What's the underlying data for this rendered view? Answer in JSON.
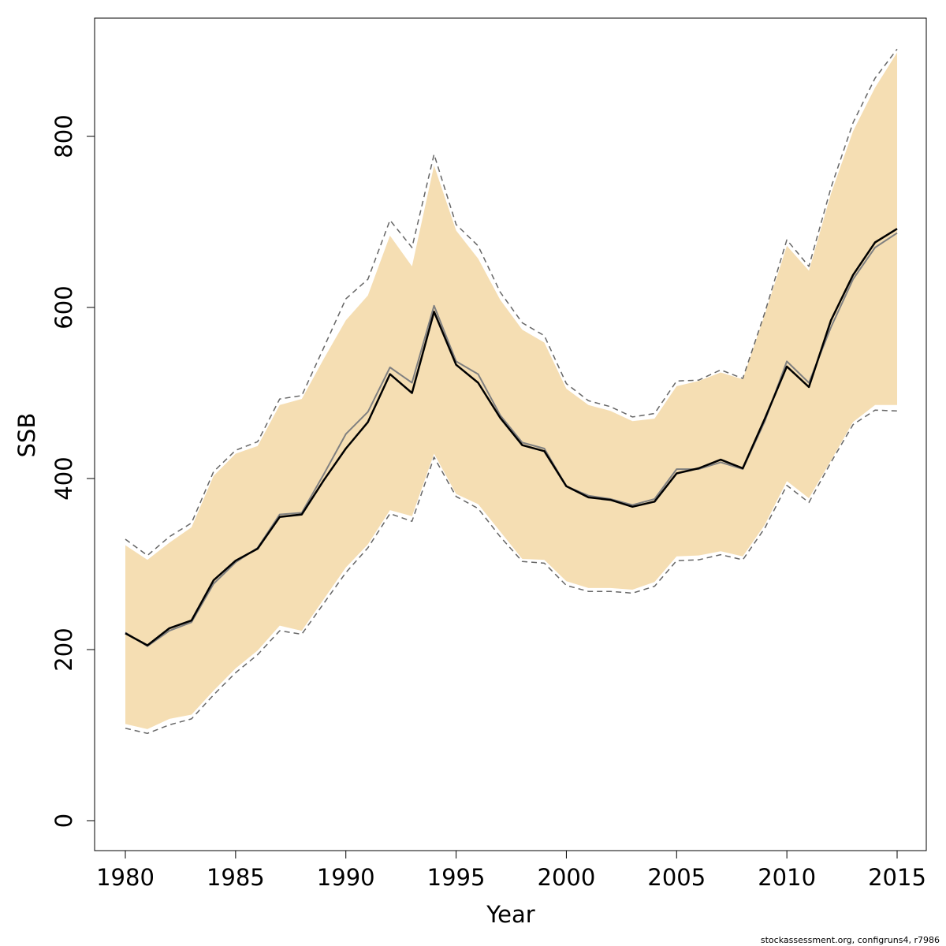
{
  "chart_data": {
    "type": "area",
    "xlabel": "Year",
    "ylabel": "SSB",
    "xlim": [
      1978.6,
      1980.0
    ],
    "ylim": [
      -90,
      960
    ],
    "x_ticks": [
      1980,
      1985,
      1990,
      1995,
      2000,
      2005,
      2010,
      2015
    ],
    "y_ticks": [
      0,
      200,
      400,
      600,
      800
    ],
    "grid": false,
    "colors": {
      "band": "#f5deb3",
      "estimate": "#000000",
      "alternate": "#808080",
      "bounds": "#666666"
    },
    "x": [
      1980,
      1981,
      1982,
      1983,
      1984,
      1985,
      1986,
      1987,
      1988,
      1989,
      1990,
      1991,
      1992,
      1993,
      1994,
      1995,
      1996,
      1997,
      1998,
      1999,
      2000,
      2001,
      2002,
      2003,
      2004,
      2005,
      2006,
      2007,
      2008,
      2009,
      2010,
      2011,
      2012,
      2013,
      2014,
      2015
    ],
    "series": [
      {
        "role": "estimate",
        "values": [
          219,
          205,
          225,
          234,
          281,
          304,
          318,
          355,
          358,
          398,
          435,
          466,
          522,
          500,
          595,
          533,
          512,
          471,
          439,
          432,
          391,
          378,
          375,
          367,
          373,
          406,
          412,
          422,
          412,
          470,
          531,
          507,
          585,
          638,
          676,
          692
        ]
      },
      {
        "role": "alternate",
        "values": [
          220,
          204,
          222,
          232,
          277,
          302,
          319,
          358,
          360,
          405,
          452,
          478,
          530,
          512,
          602,
          537,
          522,
          474,
          442,
          435,
          391,
          380,
          376,
          369,
          376,
          411,
          411,
          419,
          411,
          467,
          537,
          512,
          577,
          633,
          670,
          687
        ]
      },
      {
        "role": "band_upper",
        "values": [
          322,
          305,
          325,
          343,
          403,
          429,
          438,
          486,
          493,
          540,
          585,
          614,
          684,
          648,
          766,
          690,
          657,
          609,
          574,
          559,
          505,
          486,
          479,
          467,
          470,
          508,
          514,
          524,
          516,
          592,
          672,
          643,
          733,
          806,
          857,
          898
        ]
      },
      {
        "role": "band_lower",
        "values": [
          113,
          107,
          119,
          124,
          152,
          178,
          199,
          228,
          222,
          259,
          296,
          323,
          363,
          356,
          429,
          382,
          370,
          338,
          306,
          305,
          280,
          272,
          272,
          270,
          279,
          309,
          310,
          315,
          309,
          346,
          397,
          377,
          421,
          466,
          486,
          486
        ]
      },
      {
        "role": "dashed_upper",
        "values": [
          329,
          310,
          332,
          348,
          408,
          433,
          443,
          493,
          497,
          553,
          610,
          633,
          702,
          670,
          779,
          697,
          672,
          618,
          582,
          567,
          511,
          491,
          484,
          472,
          476,
          514,
          515,
          527,
          517,
          594,
          679,
          648,
          740,
          816,
          868,
          902
        ]
      },
      {
        "role": "dashed_lower",
        "values": [
          108,
          102,
          112,
          119,
          147,
          173,
          194,
          222,
          218,
          254,
          290,
          319,
          359,
          350,
          425,
          379,
          365,
          332,
          303,
          301,
          275,
          268,
          268,
          266,
          274,
          304,
          305,
          311,
          305,
          342,
          392,
          372,
          419,
          463,
          480,
          479
        ]
      }
    ]
  },
  "footnote": "stockassessment.org, configruns4, r7986"
}
